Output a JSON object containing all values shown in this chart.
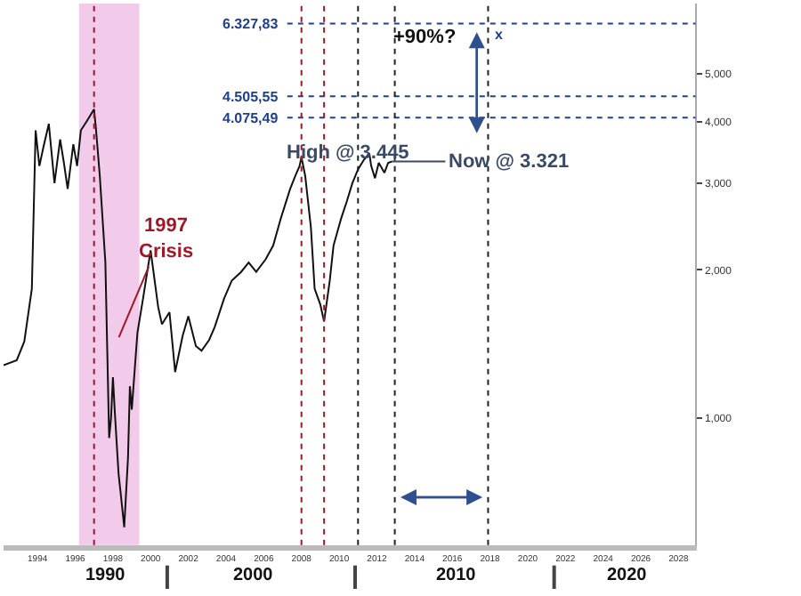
{
  "chart_data": {
    "type": "line",
    "log": "y",
    "x": [
      1992.2,
      1992.9,
      1993.3,
      1993.7,
      1993.9,
      1994.1,
      1994.3,
      1994.6,
      1994.9,
      1995.2,
      1995.4,
      1995.6,
      1995.9,
      1996.1,
      1996.3,
      1996.6,
      1997.0,
      1997.1,
      1997.3,
      1997.6,
      1997.7,
      1997.8,
      1997.9,
      1998.0,
      1998.1,
      1998.3,
      1998.4,
      1998.6,
      1998.8,
      1998.9,
      1999.0,
      1999.3,
      1999.6,
      2000.0,
      2000.4,
      2000.6,
      2001.0,
      2001.3,
      2001.7,
      2002.0,
      2002.4,
      2002.7,
      2003.1,
      2003.4,
      2003.9,
      2004.3,
      2004.8,
      2005.2,
      2005.6,
      2006.1,
      2006.5,
      2006.9,
      2007.4,
      2007.7,
      2007.9,
      2008.0,
      2008.2,
      2008.5,
      2008.7,
      2009.0,
      2009.2,
      2009.5,
      2009.7,
      2010.1,
      2010.4,
      2010.7,
      2011.0,
      2011.3,
      2011.6,
      2011.7,
      2011.9,
      2012.1,
      2012.2,
      2012.4,
      2012.6,
      2012.8
    ],
    "series": [
      {
        "color": "#111111",
        "values": [
          1280,
          1310,
          1430,
          1830,
          3840,
          3250,
          3530,
          3960,
          3000,
          3680,
          3300,
          2920,
          3600,
          3250,
          3840,
          4000,
          4240,
          3870,
          3120,
          2070,
          1370,
          910,
          1000,
          1210,
          1030,
          770,
          710,
          600,
          830,
          1160,
          1040,
          1490,
          1750,
          2190,
          1680,
          1550,
          1640,
          1240,
          1470,
          1610,
          1400,
          1370,
          1440,
          1530,
          1750,
          1900,
          1980,
          2070,
          1980,
          2100,
          2240,
          2540,
          2920,
          3120,
          3250,
          3390,
          3100,
          2440,
          1830,
          1700,
          1570,
          1900,
          2240,
          2540,
          2750,
          3000,
          3200,
          3340,
          3450,
          3250,
          3070,
          3300,
          3250,
          3150,
          3300,
          3321
        ]
      }
    ],
    "xlim": [
      1992.2,
      2028.9
    ],
    "xticks": [
      1994,
      1996,
      1998,
      2000,
      2002,
      2004,
      2006,
      2008,
      2010,
      2012,
      2014,
      2016,
      2018,
      2020,
      2022,
      2024,
      2026,
      2028
    ],
    "ylim": [
      552,
      6950
    ],
    "yticks": [
      {
        "value": 1000,
        "label": "1,000"
      },
      {
        "value": 2000,
        "label": "2,000"
      },
      {
        "value": 3000,
        "label": "3,000"
      },
      {
        "value": 4000,
        "label": "4,000"
      },
      {
        "value": 5000,
        "label": "5,000"
      }
    ],
    "grid": false,
    "ref_lines": [
      {
        "axis": "y",
        "value": 6327.83,
        "label": "6.327,83",
        "color": "#1f3f8f",
        "line_style": "dotted"
      },
      {
        "axis": "y",
        "value": 4505.55,
        "label": "4.505,55",
        "color": "#1f3f8f",
        "line_style": "dotted"
      },
      {
        "axis": "y",
        "value": 4075.49,
        "label": "4.075,49",
        "color": "#1f3f8f",
        "line_style": "dotted"
      },
      {
        "axis": "x",
        "value": 1997.0,
        "color": "#a01828",
        "line_style": "dotted"
      },
      {
        "axis": "x",
        "value": 2008.0,
        "color": "#a01828",
        "line_style": "dotted"
      },
      {
        "axis": "x",
        "value": 2009.2,
        "color": "#a01828",
        "line_style": "dotted"
      },
      {
        "axis": "x",
        "value": 2011.0,
        "color": "#222222",
        "line_style": "dotted"
      },
      {
        "axis": "x",
        "value": 2012.95,
        "color": "#222222",
        "line_style": "dotted"
      },
      {
        "axis": "x",
        "value": 2017.9,
        "color": "#222222",
        "line_style": "dotted"
      }
    ],
    "bands": [
      {
        "axis": "x",
        "from": 1996.2,
        "to": 1999.4,
        "color": "#e9a6dc"
      }
    ],
    "annotations": [
      "1997\nCrisis",
      {
        "text": "High @ 3.445",
        "x": 2010.5,
        "y": 3445
      },
      {
        "text": "Now @ 3.321",
        "x": 2012.8,
        "y": 3321
      },
      {
        "text": "+90%?",
        "x": 2017.9,
        "y": 6327.83
      },
      {
        "text": "x",
        "x": 2017.9,
        "y": 6327.83
      },
      "1990",
      "2000",
      "2010",
      "2020"
    ]
  }
}
